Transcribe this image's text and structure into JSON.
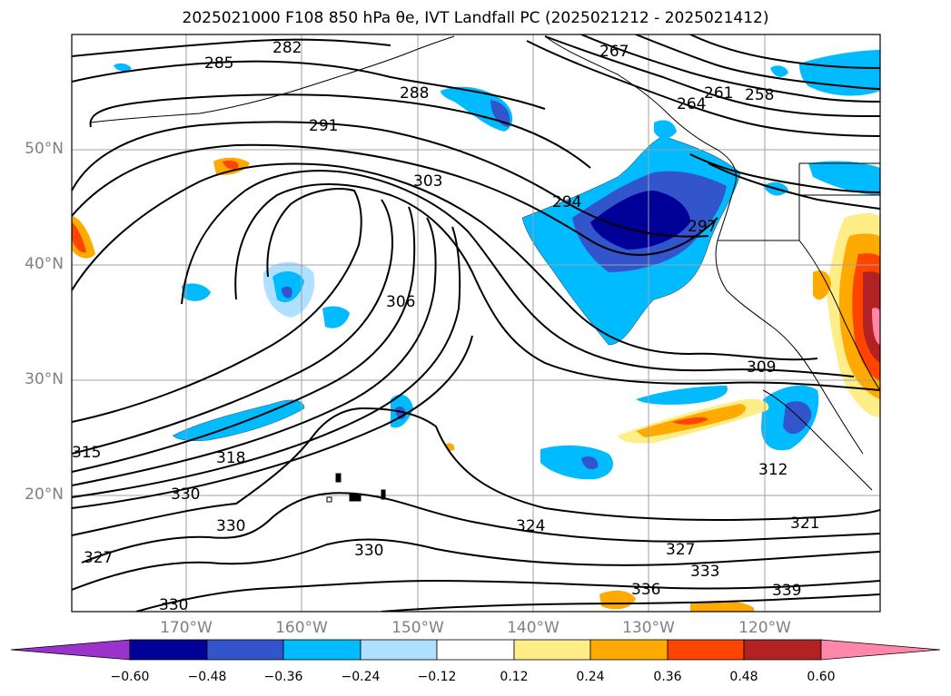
{
  "title": "2025021000 F108 850 hPa θe, IVT Landfall PC (2025021212 - 2025021412)",
  "map": {
    "lat_labels": [
      "50°N",
      "40°N",
      "30°N",
      "20°N"
    ],
    "lon_labels": [
      "170°W",
      "160°W",
      "150°W",
      "140°W",
      "130°W",
      "120°W"
    ],
    "contour_labels": [
      "282",
      "285",
      "288",
      "291",
      "294",
      "297",
      "303",
      "306",
      "309",
      "312",
      "315",
      "318",
      "321",
      "324",
      "327",
      "330",
      "333",
      "336",
      "339",
      "258",
      "261",
      "264",
      "267"
    ],
    "colors": {
      "frame": "#000000",
      "grid": "#a0a0a0",
      "contour": "#000000",
      "coast": "#000000"
    }
  },
  "colorbar": {
    "ticks": [
      "−0.60",
      "−0.48",
      "−0.36",
      "−0.24",
      "−0.12",
      "0.12",
      "0.24",
      "0.36",
      "0.48",
      "0.60"
    ],
    "colors": [
      "#9933cc",
      "#000099",
      "#3355cc",
      "#00bbff",
      "#b0e0ff",
      "#ffffff",
      "#ffee88",
      "#ffaa00",
      "#ff4400",
      "#b22222",
      "#ff88aa"
    ]
  }
}
